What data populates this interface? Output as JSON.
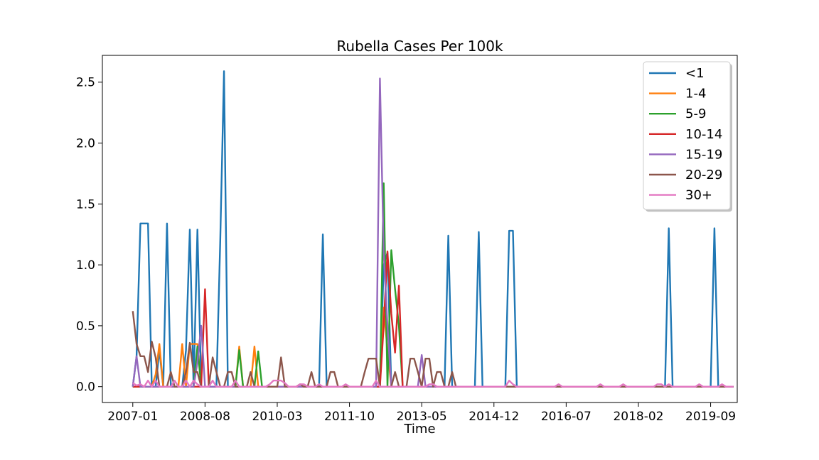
{
  "chart_data": {
    "type": "line",
    "title": "Rubella Cases Per 100k",
    "xlabel": "Time",
    "ylabel": "",
    "xlim": [
      "2006-05",
      "2020-04"
    ],
    "ylim": [
      -0.13,
      2.72
    ],
    "yticks": [
      0.0,
      0.5,
      1.0,
      1.5,
      2.0,
      2.5
    ],
    "ytick_labels": [
      "0.0",
      "0.5",
      "1.0",
      "1.5",
      "2.0",
      "2.5"
    ],
    "xticks": [
      "2007-01",
      "2008-08",
      "2010-03",
      "2011-10",
      "2013-05",
      "2014-12",
      "2016-07",
      "2018-02",
      "2019-09"
    ],
    "legend_position": "upper-right",
    "grid": false,
    "series": [
      {
        "name": "<1",
        "color": "#1f77b4",
        "points": [
          [
            "2007-01",
            0
          ],
          [
            "2007-02",
            0.25
          ],
          [
            "2007-03",
            1.34
          ],
          [
            "2007-04",
            1.34
          ],
          [
            "2007-05",
            1.34
          ],
          [
            "2007-06",
            0
          ],
          [
            "2007-07",
            0
          ],
          [
            "2007-08",
            0.3
          ],
          [
            "2007-09",
            0
          ],
          [
            "2007-10",
            1.34
          ],
          [
            "2007-11",
            0
          ],
          [
            "2008-02",
            0
          ],
          [
            "2008-03",
            0.3
          ],
          [
            "2008-04",
            1.29
          ],
          [
            "2008-05",
            0
          ],
          [
            "2008-06",
            1.29
          ],
          [
            "2008-07",
            0
          ],
          [
            "2008-11",
            0
          ],
          [
            "2008-12",
            1.2
          ],
          [
            "2009-01",
            2.59
          ],
          [
            "2009-02",
            0
          ],
          [
            "2011-02",
            0
          ],
          [
            "2011-03",
            1.25
          ],
          [
            "2011-04",
            0
          ],
          [
            "2012-06",
            0
          ],
          [
            "2012-07",
            1.0
          ],
          [
            "2012-08",
            1.1
          ],
          [
            "2012-09",
            0
          ],
          [
            "2013-11",
            0
          ],
          [
            "2013-12",
            1.24
          ],
          [
            "2014-01",
            0
          ],
          [
            "2014-07",
            0
          ],
          [
            "2014-08",
            1.27
          ],
          [
            "2014-09",
            0
          ],
          [
            "2015-03",
            0
          ],
          [
            "2015-04",
            1.28
          ],
          [
            "2015-05",
            1.28
          ],
          [
            "2015-06",
            0
          ],
          [
            "2018-09",
            0
          ],
          [
            "2018-10",
            1.3
          ],
          [
            "2018-11",
            0
          ],
          [
            "2019-09",
            0
          ],
          [
            "2019-10",
            1.3
          ],
          [
            "2019-11",
            0
          ],
          [
            "2020-03",
            0
          ]
        ]
      },
      {
        "name": "1-4",
        "color": "#ff7f0e",
        "points": [
          [
            "2007-01",
            0
          ],
          [
            "2007-06",
            0
          ],
          [
            "2007-07",
            0.1
          ],
          [
            "2007-08",
            0.35
          ],
          [
            "2007-09",
            0
          ],
          [
            "2007-12",
            0
          ],
          [
            "2008-01",
            0
          ],
          [
            "2008-02",
            0.35
          ],
          [
            "2008-03",
            0
          ],
          [
            "2008-04",
            0.35
          ],
          [
            "2008-05",
            0.35
          ],
          [
            "2008-06",
            0.35
          ],
          [
            "2008-07",
            0
          ],
          [
            "2009-04",
            0
          ],
          [
            "2009-05",
            0.33
          ],
          [
            "2009-06",
            0
          ],
          [
            "2009-08",
            0
          ],
          [
            "2009-09",
            0.33
          ],
          [
            "2009-10",
            0
          ],
          [
            "2012-06",
            0
          ],
          [
            "2012-07",
            0.65
          ],
          [
            "2012-08",
            0.3
          ],
          [
            "2012-09",
            0
          ],
          [
            "2020-03",
            0
          ]
        ]
      },
      {
        "name": "5-9",
        "color": "#2ca02c",
        "points": [
          [
            "2007-01",
            0
          ],
          [
            "2008-05",
            0
          ],
          [
            "2008-06",
            0.33
          ],
          [
            "2008-07",
            0
          ],
          [
            "2009-04",
            0
          ],
          [
            "2009-05",
            0.3
          ],
          [
            "2009-06",
            0
          ],
          [
            "2009-09",
            0
          ],
          [
            "2009-10",
            0.29
          ],
          [
            "2009-11",
            0
          ],
          [
            "2012-06",
            0
          ],
          [
            "2012-07",
            1.67
          ],
          [
            "2012-08",
            0
          ],
          [
            "2012-09",
            1.12
          ],
          [
            "2012-10",
            0.8
          ],
          [
            "2012-11",
            0.5
          ],
          [
            "2012-12",
            0
          ],
          [
            "2020-03",
            0
          ]
        ]
      },
      {
        "name": "10-14",
        "color": "#d62728",
        "points": [
          [
            "2007-01",
            0
          ],
          [
            "2008-07",
            0
          ],
          [
            "2008-08",
            0.8
          ],
          [
            "2008-09",
            0
          ],
          [
            "2012-06",
            0
          ],
          [
            "2012-07",
            0.5
          ],
          [
            "2012-08",
            1.11
          ],
          [
            "2012-09",
            0.6
          ],
          [
            "2012-10",
            0.28
          ],
          [
            "2012-11",
            0.83
          ],
          [
            "2012-12",
            0
          ],
          [
            "2020-03",
            0
          ]
        ]
      },
      {
        "name": "15-19",
        "color": "#9467bd",
        "points": [
          [
            "2007-01",
            0
          ],
          [
            "2007-02",
            0.25
          ],
          [
            "2007-03",
            0
          ],
          [
            "2008-05",
            0
          ],
          [
            "2008-06",
            0.2
          ],
          [
            "2008-07",
            0.5
          ],
          [
            "2008-08",
            0
          ],
          [
            "2012-05",
            0
          ],
          [
            "2012-06",
            2.53
          ],
          [
            "2012-07",
            1.1
          ],
          [
            "2012-08",
            0.5
          ],
          [
            "2012-09",
            0
          ],
          [
            "2013-04",
            0
          ],
          [
            "2013-05",
            0.26
          ],
          [
            "2013-06",
            0
          ],
          [
            "2020-03",
            0
          ]
        ]
      },
      {
        "name": "20-29",
        "color": "#8c564b",
        "points": [
          [
            "2007-01",
            0.62
          ],
          [
            "2007-02",
            0.35
          ],
          [
            "2007-03",
            0.25
          ],
          [
            "2007-04",
            0.25
          ],
          [
            "2007-05",
            0.12
          ],
          [
            "2007-06",
            0.37
          ],
          [
            "2007-07",
            0.24
          ],
          [
            "2007-08",
            0
          ],
          [
            "2007-09",
            0
          ],
          [
            "2007-10",
            0
          ],
          [
            "2007-11",
            0.12
          ],
          [
            "2007-12",
            0
          ],
          [
            "2008-01",
            0
          ],
          [
            "2008-02",
            0
          ],
          [
            "2008-03",
            0.12
          ],
          [
            "2008-04",
            0.36
          ],
          [
            "2008-05",
            0.12
          ],
          [
            "2008-06",
            0.12
          ],
          [
            "2008-07",
            0
          ],
          [
            "2008-08",
            0
          ],
          [
            "2008-09",
            0
          ],
          [
            "2008-10",
            0.24
          ],
          [
            "2008-11",
            0.12
          ],
          [
            "2008-12",
            0
          ],
          [
            "2009-01",
            0
          ],
          [
            "2009-02",
            0.12
          ],
          [
            "2009-03",
            0.12
          ],
          [
            "2009-04",
            0
          ],
          [
            "2009-05",
            0
          ],
          [
            "2009-06",
            0
          ],
          [
            "2009-07",
            0
          ],
          [
            "2009-08",
            0.12
          ],
          [
            "2009-09",
            0
          ],
          [
            "2010-02",
            0
          ],
          [
            "2010-03",
            0
          ],
          [
            "2010-04",
            0.24
          ],
          [
            "2010-05",
            0
          ],
          [
            "2010-08",
            0
          ],
          [
            "2010-09",
            0.02
          ],
          [
            "2010-10",
            0
          ],
          [
            "2010-11",
            0
          ],
          [
            "2010-12",
            0.12
          ],
          [
            "2011-01",
            0
          ],
          [
            "2011-04",
            0
          ],
          [
            "2011-05",
            0.12
          ],
          [
            "2011-06",
            0.12
          ],
          [
            "2011-07",
            0
          ],
          [
            "2011-08",
            0
          ],
          [
            "2011-09",
            0
          ],
          [
            "2011-10",
            0
          ],
          [
            "2011-11",
            0
          ],
          [
            "2011-12",
            0
          ],
          [
            "2012-01",
            0
          ],
          [
            "2012-02",
            0.12
          ],
          [
            "2012-03",
            0.23
          ],
          [
            "2012-04",
            0.23
          ],
          [
            "2012-05",
            0.23
          ],
          [
            "2012-06",
            0
          ],
          [
            "2012-07",
            0
          ],
          [
            "2012-08",
            0
          ],
          [
            "2012-09",
            0
          ],
          [
            "2012-10",
            0.12
          ],
          [
            "2012-11",
            0
          ],
          [
            "2012-12",
            0
          ],
          [
            "2013-01",
            0
          ],
          [
            "2013-02",
            0.23
          ],
          [
            "2013-03",
            0.23
          ],
          [
            "2013-04",
            0.12
          ],
          [
            "2013-05",
            0
          ],
          [
            "2013-06",
            0.23
          ],
          [
            "2013-07",
            0.23
          ],
          [
            "2013-08",
            0
          ],
          [
            "2013-09",
            0.12
          ],
          [
            "2013-10",
            0.12
          ],
          [
            "2013-11",
            0
          ],
          [
            "2013-12",
            0
          ],
          [
            "2014-01",
            0.12
          ],
          [
            "2014-02",
            0
          ],
          [
            "2020-03",
            0
          ]
        ]
      },
      {
        "name": "30+",
        "color": "#e377c2",
        "points": [
          [
            "2007-01",
            0.03
          ],
          [
            "2007-02",
            0.01
          ],
          [
            "2007-03",
            0.02
          ],
          [
            "2007-04",
            0
          ],
          [
            "2007-05",
            0.05
          ],
          [
            "2007-06",
            0
          ],
          [
            "2007-07",
            0.05
          ],
          [
            "2007-08",
            0
          ],
          [
            "2007-09",
            0
          ],
          [
            "2007-10",
            0
          ],
          [
            "2007-11",
            0
          ],
          [
            "2007-12",
            0.05
          ],
          [
            "2008-01",
            0
          ],
          [
            "2008-02",
            0
          ],
          [
            "2008-03",
            0.05
          ],
          [
            "2008-04",
            0
          ],
          [
            "2008-05",
            0.05
          ],
          [
            "2008-06",
            0.02
          ],
          [
            "2008-07",
            0
          ],
          [
            "2008-08",
            0
          ],
          [
            "2008-09",
            0
          ],
          [
            "2008-10",
            0.05
          ],
          [
            "2008-11",
            0
          ],
          [
            "2008-12",
            0
          ],
          [
            "2009-01",
            0
          ],
          [
            "2009-02",
            0
          ],
          [
            "2009-03",
            0
          ],
          [
            "2009-04",
            0.05
          ],
          [
            "2009-05",
            0
          ],
          [
            "2009-06",
            0
          ],
          [
            "2009-07",
            0
          ],
          [
            "2009-08",
            0
          ],
          [
            "2009-09",
            0
          ],
          [
            "2009-10",
            0
          ],
          [
            "2009-11",
            0
          ],
          [
            "2009-12",
            0
          ],
          [
            "2010-01",
            0.02
          ],
          [
            "2010-02",
            0.05
          ],
          [
            "2010-03",
            0.05
          ],
          [
            "2010-04",
            0.05
          ],
          [
            "2010-05",
            0.03
          ],
          [
            "2010-06",
            0
          ],
          [
            "2010-07",
            0
          ],
          [
            "2010-08",
            0
          ],
          [
            "2010-09",
            0.02
          ],
          [
            "2010-10",
            0.02
          ],
          [
            "2010-11",
            0
          ],
          [
            "2011-01",
            0
          ],
          [
            "2011-02",
            0.02
          ],
          [
            "2011-03",
            0
          ],
          [
            "2011-08",
            0
          ],
          [
            "2011-09",
            0.02
          ],
          [
            "2011-10",
            0
          ],
          [
            "2012-04",
            0
          ],
          [
            "2012-05",
            0.05
          ],
          [
            "2012-06",
            0
          ],
          [
            "2013-06",
            0
          ],
          [
            "2013-07",
            0.02
          ],
          [
            "2013-08",
            0.02
          ],
          [
            "2013-09",
            0
          ],
          [
            "2015-03",
            0
          ],
          [
            "2015-04",
            0.05
          ],
          [
            "2015-05",
            0.02
          ],
          [
            "2015-06",
            0
          ],
          [
            "2016-04",
            0
          ],
          [
            "2016-05",
            0.02
          ],
          [
            "2016-06",
            0
          ],
          [
            "2017-03",
            0
          ],
          [
            "2017-04",
            0.02
          ],
          [
            "2017-05",
            0
          ],
          [
            "2017-09",
            0
          ],
          [
            "2017-10",
            0.02
          ],
          [
            "2017-11",
            0
          ],
          [
            "2018-06",
            0
          ],
          [
            "2018-07",
            0.02
          ],
          [
            "2018-08",
            0.02
          ],
          [
            "2018-09",
            0
          ],
          [
            "2018-10",
            0.02
          ],
          [
            "2018-11",
            0
          ],
          [
            "2019-05",
            0
          ],
          [
            "2019-06",
            0.02
          ],
          [
            "2019-07",
            0
          ],
          [
            "2019-11",
            0
          ],
          [
            "2019-12",
            0.02
          ],
          [
            "2020-01",
            0
          ],
          [
            "2020-03",
            0
          ]
        ]
      }
    ]
  }
}
